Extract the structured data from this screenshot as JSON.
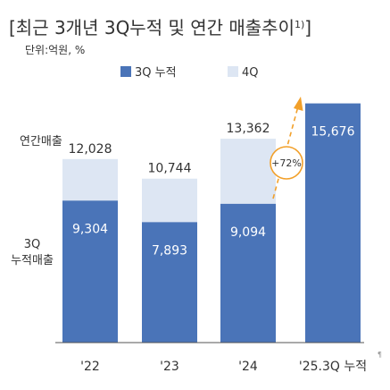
{
  "chart_data": {
    "type": "bar",
    "title": "[최근 3개년 3Q누적 및 연간 매출추이",
    "title_sup": "1)",
    "title_close": "]",
    "unit_label": "단위:억원, %",
    "categories": [
      "'22",
      "'23",
      "'24",
      "'25.3Q 누적"
    ],
    "series": [
      {
        "name": "3Q 누적",
        "values": [
          9304,
          7893,
          9094,
          15676
        ],
        "labels": [
          "9,304",
          "7,893",
          "9,094",
          "15,676"
        ],
        "color": "#4a74b8"
      },
      {
        "name": "4Q",
        "values": [
          2724,
          2851,
          4268,
          null
        ],
        "color": "#dde6f3"
      }
    ],
    "annual_totals": [
      12028,
      10744,
      13362,
      null
    ],
    "annual_total_labels": [
      "12,028",
      "10,744",
      "13,362",
      ""
    ],
    "row_label_annual": "연간매출",
    "row_label_3q_line1": "3Q",
    "row_label_3q_line2": "누적매출",
    "growth_annotation": "+72%",
    "annotation_color": "#f2a02a",
    "ylim": [
      0,
      17000
    ],
    "legend_position": "top",
    "corner_mark": "¶"
  }
}
